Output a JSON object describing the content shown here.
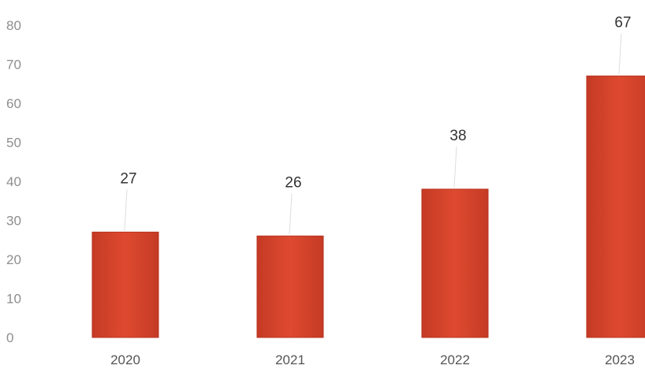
{
  "chart_data": {
    "type": "bar",
    "categories": [
      "2020",
      "2021",
      "2022",
      "2023"
    ],
    "values": [
      27,
      26,
      38,
      67
    ],
    "title": "",
    "xlabel": "",
    "ylabel": "",
    "ylim": [
      0,
      80
    ],
    "yticks": [
      0,
      10,
      20,
      30,
      40,
      50,
      60,
      70,
      80
    ],
    "grid": false,
    "legend": "none",
    "data_labels": [
      "27",
      "26",
      "38",
      "67"
    ],
    "colors": {
      "bar_fill": "#d9432c",
      "bar_stroke": "#b8321e"
    }
  }
}
